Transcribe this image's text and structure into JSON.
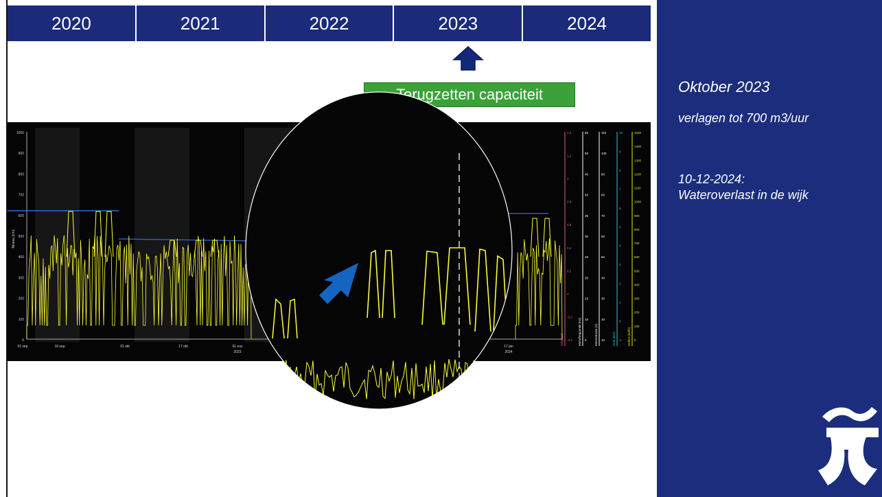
{
  "timeline": {
    "years": [
      "2020",
      "2021",
      "2022",
      "2023",
      "2024"
    ],
    "selected": "2023"
  },
  "callout": {
    "label": "Terugzetten capaciteit"
  },
  "sidebar": {
    "title": "Oktober 2023",
    "line1": "verlagen tot 700 m3/uur",
    "line2": "10-12-2024:",
    "line3": "Wateroverlast in de wijk"
  },
  "chart": {
    "left_axis_label": "Niveau (cm)",
    "left_ticks": [
      "1000",
      "900",
      "800",
      "700",
      "600",
      "500",
      "400",
      "300",
      "200",
      "100",
      "0"
    ],
    "x_ticks": [
      "01 sep",
      "16 sep",
      "01 okt",
      "17 okt",
      "01 nov",
      "17 jan"
    ],
    "x_subticks": [
      "2023",
      "2024"
    ],
    "right_axes": [
      {
        "label": "Vulgraad",
        "color": "#e0608a",
        "ticks": [
          "1,4",
          "1,2",
          "1",
          "0,8",
          "0,6",
          "0,4",
          "0,2",
          "0",
          "-0,2",
          "-0,4"
        ]
      },
      {
        "label": "Motorfrequentie (Hz)",
        "color": "#ffffff",
        "ticks": [
          "55",
          "50",
          "45",
          "40",
          "35",
          "30",
          "25",
          "20",
          "15",
          "10",
          "5"
        ]
      },
      {
        "label": "Motorstroom (A)",
        "color": "#ffffff",
        "ticks": [
          "110",
          "100",
          "90",
          "80",
          "70",
          "60",
          "50",
          "40",
          "30",
          "20",
          "10"
        ]
      },
      {
        "label": "Druk (Bar)",
        "color": "#22c7d8",
        "ticks": [
          "10",
          "9",
          "8",
          "7",
          "6",
          "5",
          "4",
          "3",
          "2",
          "1",
          "0",
          "-1"
        ]
      },
      {
        "label": "Debiet (m3/h)",
        "color": "#e6e600",
        "ticks": [
          "1500",
          "1400",
          "1300",
          "1200",
          "1100",
          "1000",
          "900",
          "800",
          "700",
          "600",
          "500",
          "400",
          "300",
          "200",
          "100",
          "0"
        ]
      }
    ],
    "colors": {
      "signal": "#ffff33",
      "threshold": "#2a6fd6",
      "arrow": "#1565c0"
    }
  }
}
